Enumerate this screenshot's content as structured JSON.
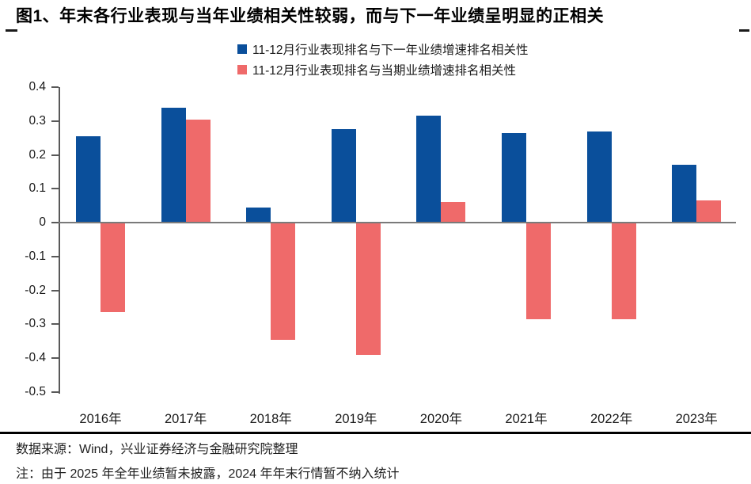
{
  "page": {
    "title": "图1、年末各行业表现与当年业绩相关性较弱，而与下一年业绩呈明显的正相关"
  },
  "legend": {
    "items": [
      {
        "label": "11-12月行业表现排名与下一年业绩增速排名相关性",
        "color": "#0A4F9B"
      },
      {
        "label": "11-12月行业表现排名与当期业绩增速排名相关性",
        "color": "#EF6A6A"
      }
    ]
  },
  "chart_data": {
    "type": "bar",
    "title": "",
    "xlabel": "",
    "ylabel": "",
    "categories": [
      "2016年",
      "2017年",
      "2018年",
      "2019年",
      "2020年",
      "2021年",
      "2022年",
      "2023年"
    ],
    "series": [
      {
        "name": "11-12月行业表现排名与下一年业绩增速排名相关性",
        "color": "#0A4F9B",
        "values": [
          0.255,
          0.34,
          0.045,
          0.275,
          0.315,
          0.265,
          0.27,
          0.17
        ]
      },
      {
        "name": "11-12月行业表现排名与当期业绩增速排名相关性",
        "color": "#EF6A6A",
        "values": [
          -0.265,
          0.305,
          -0.345,
          -0.39,
          0.06,
          -0.285,
          -0.285,
          0.065
        ]
      }
    ],
    "ylim": [
      -0.5,
      0.4
    ],
    "ytick_values": [
      0.4,
      0.3,
      0.2,
      0.1,
      0,
      -0.1,
      -0.2,
      -0.3,
      -0.4,
      -0.5
    ],
    "ytick_labels": [
      "0.4",
      "0.3",
      "0.2",
      "0.1",
      "0",
      "-0.1",
      "-0.2",
      "-0.3",
      "-0.4",
      "-0.5"
    ],
    "grid": false,
    "legend_position": "top-center"
  },
  "footer": {
    "source": "数据来源：Wind，兴业证券经济与金融研究院整理",
    "note": "注：由于 2025 年全年业绩暂未披露，2024 年年末行情暂不纳入统计"
  },
  "colors": {
    "series_blue": "#0A4F9B",
    "series_red": "#EF6A6A",
    "axis": "#595959",
    "zero_line": "#7A7A7A",
    "text": "#1A1A1A",
    "rule": "#000000",
    "background": "#FFFFFF"
  }
}
